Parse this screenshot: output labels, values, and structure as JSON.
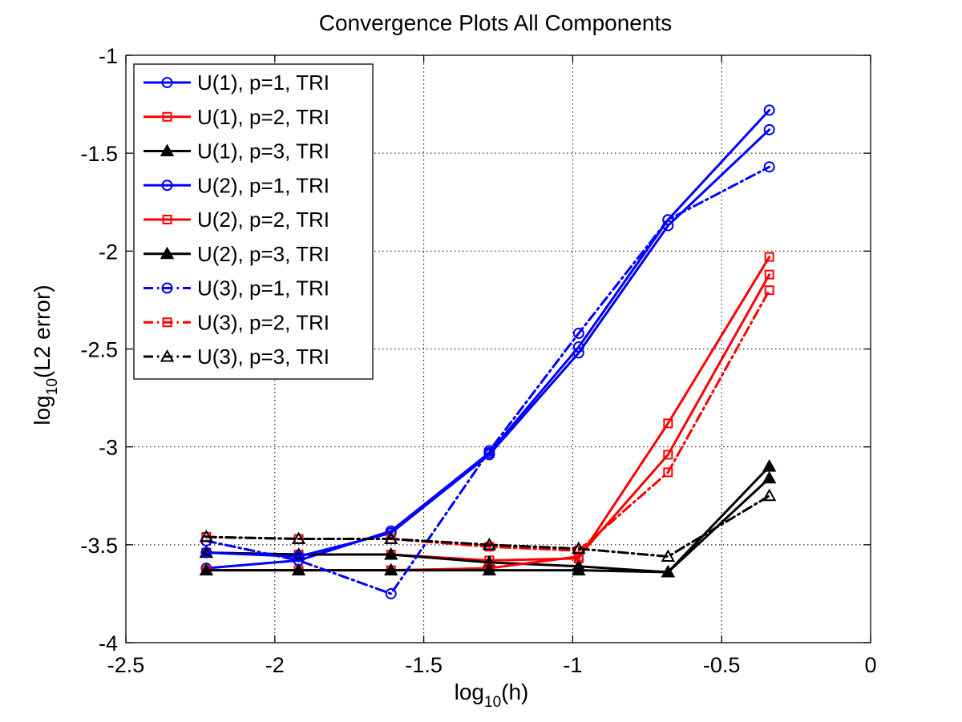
{
  "chart_data": {
    "type": "line",
    "title": "Convergence Plots All Components",
    "xlabel": {
      "prefix": "log",
      "sub": "10",
      "suffix": "(h)"
    },
    "ylabel": {
      "prefix": "log",
      "sub": "10",
      "suffix": "(L2 error)"
    },
    "xlim": [
      -2.5,
      0
    ],
    "ylim": [
      -4,
      -1
    ],
    "xticks": [
      -2.5,
      -2,
      -1.5,
      -1,
      -0.5,
      0
    ],
    "xtick_labels": [
      "-2.5",
      "-2",
      "-1.5",
      "-1",
      "-0.5",
      "0"
    ],
    "yticks": [
      -4,
      -3.5,
      -3,
      -2.5,
      -2,
      -1.5,
      -1
    ],
    "ytick_labels": [
      "-4",
      "-3.5",
      "-3",
      "-2.5",
      "-2",
      "-1.5",
      "-1"
    ],
    "grid": true,
    "legend_position": "top-left",
    "x": [
      -2.23,
      -1.92,
      -1.61,
      -1.28,
      -0.98,
      -0.68,
      -0.34
    ],
    "series": [
      {
        "name": "U(1), p=1, TRI",
        "color": "#0000ff",
        "marker": "circle",
        "line": "solid",
        "values": [
          -3.62,
          -3.58,
          -3.43,
          -3.03,
          -2.49,
          -1.84,
          -1.28
        ]
      },
      {
        "name": "U(1), p=2, TRI",
        "color": "#ff0000",
        "marker": "square",
        "line": "solid",
        "values": [
          -3.54,
          -3.55,
          -3.55,
          -3.58,
          -3.57,
          -2.88,
          -2.03
        ]
      },
      {
        "name": "U(1), p=3, TRI",
        "color": "#000000",
        "marker": "triangle-filled",
        "line": "solid",
        "values": [
          -3.54,
          -3.55,
          -3.55,
          -3.59,
          -3.61,
          -3.64,
          -3.1
        ]
      },
      {
        "name": "U(2), p=1, TRI",
        "color": "#0000ff",
        "marker": "circle",
        "line": "solid",
        "values": [
          -3.54,
          -3.56,
          -3.44,
          -3.04,
          -2.52,
          -1.87,
          -1.38
        ]
      },
      {
        "name": "U(2), p=2, TRI",
        "color": "#ff0000",
        "marker": "square",
        "line": "solid",
        "values": [
          -3.63,
          -3.63,
          -3.63,
          -3.62,
          -3.56,
          -3.04,
          -2.12
        ]
      },
      {
        "name": "U(2), p=3, TRI",
        "color": "#000000",
        "marker": "triangle-filled",
        "line": "solid",
        "values": [
          -3.63,
          -3.63,
          -3.63,
          -3.63,
          -3.63,
          -3.64,
          -3.16
        ]
      },
      {
        "name": "U(3), p=1, TRI",
        "color": "#0000ff",
        "marker": "circle",
        "line": "dashdot",
        "values": [
          -3.48,
          -3.58,
          -3.75,
          -3.02,
          -2.42,
          -1.84,
          -1.57
        ]
      },
      {
        "name": "U(3), p=2, TRI",
        "color": "#ff0000",
        "marker": "square",
        "line": "dashdot",
        "values": [
          -3.46,
          -3.47,
          -3.47,
          -3.51,
          -3.53,
          -3.13,
          -2.2
        ]
      },
      {
        "name": "U(3), p=3, TRI",
        "color": "#000000",
        "marker": "triangle",
        "line": "dashdot",
        "values": [
          -3.46,
          -3.47,
          -3.47,
          -3.5,
          -3.52,
          -3.56,
          -3.25
        ]
      }
    ]
  }
}
